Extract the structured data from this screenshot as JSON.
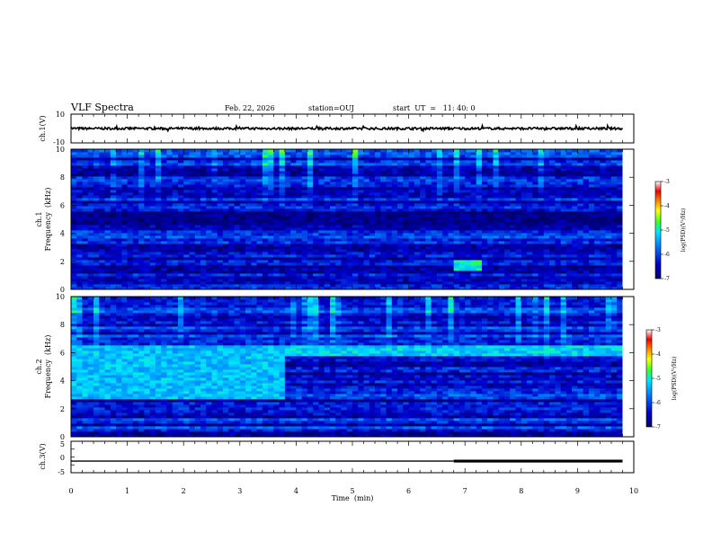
{
  "header": {
    "title": "VLF Spectra",
    "date": "Feb. 22, 2026",
    "station": "station=OUJ",
    "start": "start  UT  =   11: 40: 0"
  },
  "chart_data": [
    {
      "type": "line",
      "name": "waveform-ch1",
      "ylabel": "ch.1(V)",
      "ylim": [
        -10,
        10
      ],
      "ytick_labels": [
        "10",
        "-10"
      ],
      "x_range": [
        0,
        10
      ],
      "data_extent_min": 9.8,
      "baseline": 0,
      "noise_amplitude": 0.8
    },
    {
      "type": "heatmap",
      "name": "spectrogram-ch1",
      "ylabel": "ch.1\nFrequency  (kHz)",
      "ylim": [
        0,
        10
      ],
      "ytick_labels": [
        "0",
        "2",
        "4",
        "6",
        "8",
        "10"
      ],
      "x_range": [
        0,
        10
      ],
      "data_extent_min": 9.8,
      "features": [
        {
          "name": "dark band",
          "freq_khz": [
            4.6,
            5.6
          ],
          "log_psd": -6.8
        },
        {
          "name": "low-frequency emission near 7.1 min",
          "time_min": [
            6.8,
            7.3
          ],
          "freq_khz": [
            1.4,
            2.2
          ],
          "log_psd": -5.0
        }
      ],
      "colorbar": {
        "label": "log(PSD)(V²/Hz)",
        "range": [
          -7,
          -3
        ],
        "tick_labels": [
          "-3",
          "-4",
          "-5",
          "-6",
          "-7"
        ]
      }
    },
    {
      "type": "heatmap",
      "name": "spectrogram-ch2",
      "ylabel": "ch.2\nFrequency  (kHz)",
      "ylim": [
        0,
        10
      ],
      "ytick_labels": [
        "0",
        "2",
        "4",
        "6",
        "8",
        "10"
      ],
      "x_range": [
        0,
        10
      ],
      "data_extent_min": 9.8,
      "features": [
        {
          "name": "enhanced band before 3.8 min",
          "time_min": [
            0,
            3.8
          ],
          "freq_khz": [
            2.6,
            6.6
          ],
          "log_psd": -5.3
        },
        {
          "name": "band after 3.8 min",
          "time_min": [
            3.8,
            9.8
          ],
          "freq_khz": [
            5.8,
            6.6
          ],
          "log_psd": -5.2
        }
      ],
      "colorbar": {
        "label": "log(PSD)(V²/Hz)",
        "range": [
          -7,
          -3
        ],
        "tick_labels": [
          "-3",
          "-4",
          "-5",
          "-6",
          "-7"
        ]
      }
    },
    {
      "type": "line",
      "name": "waveform-ch3",
      "ylabel": "ch.3(V)",
      "ylim": [
        -5,
        5
      ],
      "ytick_labels": [
        "5",
        "0",
        "-5"
      ],
      "x_range": [
        0,
        10
      ],
      "data_extent_min": 9.8,
      "level": -1.3,
      "thick_after_min": 6.8
    }
  ],
  "x_axis": {
    "label": "Time  (min)",
    "range": [
      0,
      10
    ],
    "tick_labels": [
      "0",
      "1",
      "2",
      "3",
      "4",
      "5",
      "6",
      "7",
      "8",
      "9",
      "10"
    ]
  },
  "colors": {
    "background": "#ffffff",
    "axes": "#000000",
    "colormap": [
      "#000066",
      "#0000cc",
      "#0088ff",
      "#00e5ff",
      "#33ff33",
      "#ffff00",
      "#ff8800",
      "#ee0000",
      "#ffffff"
    ]
  }
}
